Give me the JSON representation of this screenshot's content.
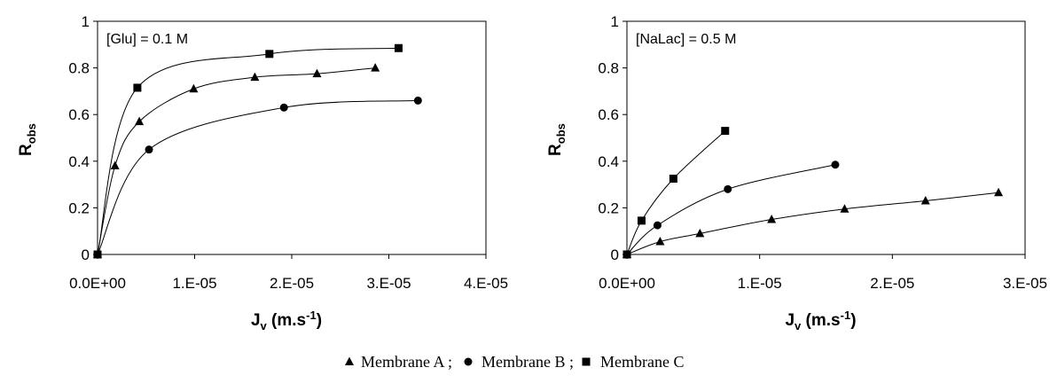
{
  "legend": {
    "items": [
      {
        "marker": "triangle",
        "label": "Membrane A ;"
      },
      {
        "marker": "circle",
        "label": "Membrane B ;"
      },
      {
        "marker": "square",
        "label": "Membrane C"
      }
    ]
  },
  "chart_data": [
    {
      "type": "scatter",
      "title": "",
      "annotation": "[Glu] = 0.1 M",
      "xlabel": {
        "main": "J",
        "sub": "v",
        "rest": " (m.s",
        "sup": "-1",
        "end": ")"
      },
      "ylabel": {
        "main": "R",
        "sub": "obs"
      },
      "xlim": [
        0,
        4e-05
      ],
      "ylim": [
        0,
        1
      ],
      "xticks": [
        0,
        1e-05,
        2e-05,
        3e-05,
        4e-05
      ],
      "xtick_labels": [
        "0.0E+00",
        "1.E-05",
        "2.E-05",
        "3.E-05",
        "4.E-05"
      ],
      "yticks": [
        0,
        0.2,
        0.4,
        0.6,
        0.8,
        1
      ],
      "ytick_labels": [
        "0",
        "0.2",
        "0.4",
        "0.6",
        "0.8",
        "1"
      ],
      "grid": false,
      "series": [
        {
          "name": "Membrane A",
          "marker": "triangle",
          "x": [
            0,
            1.8e-06,
            4.3e-06,
            9.9e-06,
            1.62e-05,
            2.26e-05,
            2.86e-05
          ],
          "y": [
            0,
            0.38,
            0.57,
            0.71,
            0.76,
            0.775,
            0.8
          ]
        },
        {
          "name": "Membrane B",
          "marker": "circle",
          "x": [
            0,
            5.3e-06,
            1.92e-05,
            3.3e-05
          ],
          "y": [
            0,
            0.45,
            0.63,
            0.66
          ]
        },
        {
          "name": "Membrane C",
          "marker": "square",
          "x": [
            0,
            4.1e-06,
            1.77e-05,
            3.1e-05
          ],
          "y": [
            0,
            0.715,
            0.86,
            0.885
          ]
        }
      ]
    },
    {
      "type": "scatter",
      "title": "",
      "annotation": "[NaLac] = 0.5 M",
      "xlabel": {
        "main": "J",
        "sub": "v",
        "rest": " (m.s",
        "sup": "-1",
        "end": ")"
      },
      "ylabel": {
        "main": "R",
        "sub": "obs"
      },
      "xlim": [
        0,
        3e-05
      ],
      "ylim": [
        0,
        1
      ],
      "xticks": [
        0,
        1e-05,
        2e-05,
        3e-05
      ],
      "xtick_labels": [
        "0.0E+00",
        "1.E-05",
        "2.E-05",
        "3.E-05"
      ],
      "yticks": [
        0,
        0.2,
        0.4,
        0.6,
        0.8,
        1
      ],
      "ytick_labels": [
        "0",
        "0.2",
        "0.4",
        "0.6",
        "0.8",
        "1"
      ],
      "grid": false,
      "series": [
        {
          "name": "Membrane A",
          "marker": "triangle",
          "x": [
            0,
            2.5e-06,
            5.5e-06,
            1.09e-05,
            1.64e-05,
            2.25e-05,
            2.8e-05
          ],
          "y": [
            0,
            0.055,
            0.09,
            0.15,
            0.195,
            0.23,
            0.265
          ]
        },
        {
          "name": "Membrane B",
          "marker": "circle",
          "x": [
            0,
            2.3e-06,
            7.6e-06,
            1.57e-05
          ],
          "y": [
            0,
            0.125,
            0.28,
            0.385
          ]
        },
        {
          "name": "Membrane C",
          "marker": "square",
          "x": [
            0,
            1.1e-06,
            3.5e-06,
            7.4e-06
          ],
          "y": [
            0,
            0.145,
            0.325,
            0.53
          ]
        }
      ]
    }
  ]
}
